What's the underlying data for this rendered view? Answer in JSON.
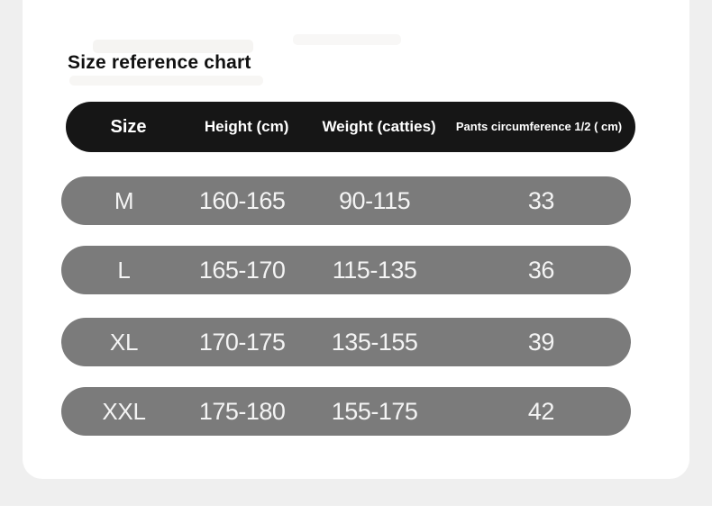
{
  "title": "Size reference chart",
  "table": {
    "headers": [
      "Size",
      "Height (cm)",
      "Weight (catties)",
      "Pants circumference 1/2 ( cm)"
    ],
    "rows": [
      {
        "size": "M",
        "height": "160-165",
        "weight": "90-115",
        "pants": "33"
      },
      {
        "size": "L",
        "height": "165-170",
        "weight": "115-135",
        "pants": "36"
      },
      {
        "size": "XL",
        "height": "170-175",
        "weight": "135-155",
        "pants": "39"
      },
      {
        "size": "XXL",
        "height": "175-180",
        "weight": "155-175",
        "pants": "42"
      }
    ]
  },
  "colors": {
    "page_background": "#efefef",
    "card_background": "#ffffff",
    "header_background": "#161616",
    "row_background": "#7b7b7b",
    "header_text": "#ffffff",
    "row_text": "#f4f4f4",
    "title_text": "#111111"
  },
  "chart_data": {
    "type": "table",
    "title": "Size reference chart",
    "columns": [
      "Size",
      "Height (cm)",
      "Weight (catties)",
      "Pants circumference 1/2 ( cm)"
    ],
    "rows": [
      [
        "M",
        "160-165",
        "90-115",
        "33"
      ],
      [
        "L",
        "165-170",
        "115-135",
        "36"
      ],
      [
        "XL",
        "170-175",
        "135-155",
        "39"
      ],
      [
        "XXL",
        "175-180",
        "155-175",
        "42"
      ]
    ]
  }
}
